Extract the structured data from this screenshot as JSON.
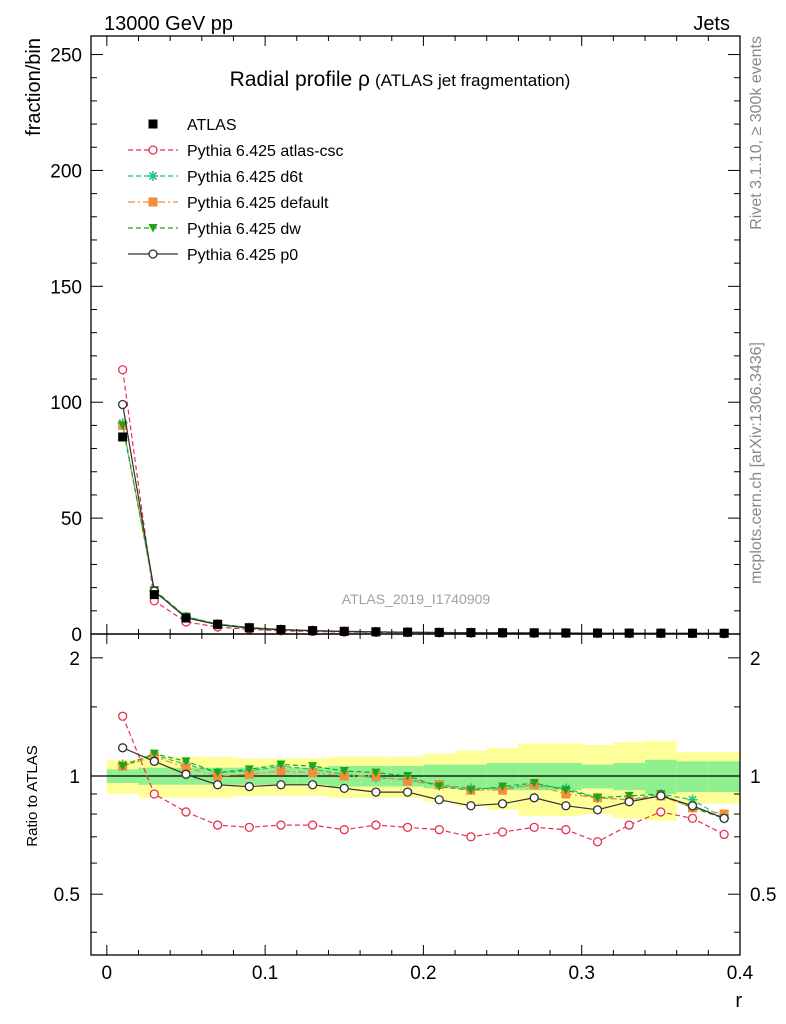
{
  "header": {
    "left": "13000 GeV pp",
    "right": "Jets"
  },
  "side_labels": {
    "top": "Rivet 3.1.10, ≥ 300k events",
    "bottom": "mcplots.cern.ch [arXiv:1306.3436]"
  },
  "watermark": "ATLAS_2019_I1740909",
  "chart_data": [
    {
      "type": "line",
      "panel": "main",
      "title": "Radial profile ρ",
      "subtitle": "(ATLAS jet fragmentation)",
      "xlabel": "",
      "ylabel": "fraction/bin",
      "xlim": [
        -0.01,
        0.4
      ],
      "ylim": [
        0,
        258
      ],
      "x_ticks": [
        0,
        0.1,
        0.2,
        0.3,
        0.4
      ],
      "y_ticks": [
        0,
        50,
        100,
        150,
        200,
        250
      ],
      "legend_position": "top-left",
      "x": [
        0.01,
        0.03,
        0.05,
        0.07,
        0.09,
        0.11,
        0.13,
        0.15,
        0.17,
        0.19,
        0.21,
        0.23,
        0.25,
        0.27,
        0.29,
        0.31,
        0.33,
        0.35,
        0.37,
        0.39
      ],
      "series": [
        {
          "name": "ATLAS",
          "style": "data",
          "color": "#000000",
          "marker": "square",
          "values": [
            85,
            17,
            6.9,
            4.2,
            2.7,
            1.9,
            1.45,
            1.15,
            0.95,
            0.8,
            0.7,
            0.62,
            0.55,
            0.5,
            0.46,
            0.42,
            0.39,
            0.36,
            0.34,
            0.32
          ]
        },
        {
          "name": "Pythia 6.425 atlas-csc",
          "style": "dashed",
          "color": "#e8304e",
          "marker": "circle-open",
          "values": [
            114,
            14.3,
            5.2,
            3.0,
            2.0,
            1.4,
            1.1,
            0.85,
            0.72,
            0.6,
            0.52,
            0.44,
            0.4,
            0.37,
            0.34,
            0.29,
            0.29,
            0.29,
            0.27,
            0.23
          ]
        },
        {
          "name": "Pythia 6.425 d6t",
          "style": "dashed",
          "color": "#1ec08a",
          "marker": "star",
          "values": [
            91,
            18.5,
            7.4,
            4.3,
            2.8,
            2.0,
            1.5,
            1.17,
            0.95,
            0.79,
            0.67,
            0.57,
            0.52,
            0.48,
            0.42,
            0.37,
            0.35,
            0.33,
            0.3,
            0.25
          ]
        },
        {
          "name": "Pythia 6.425 default",
          "style": "dashdot",
          "color": "#f58b3c",
          "marker": "square",
          "values": [
            90,
            18.7,
            7.3,
            4.2,
            2.7,
            1.95,
            1.48,
            1.16,
            0.95,
            0.78,
            0.67,
            0.57,
            0.51,
            0.48,
            0.41,
            0.37,
            0.34,
            0.32,
            0.28,
            0.26
          ]
        },
        {
          "name": "Pythia 6.425 dw",
          "style": "dashed",
          "color": "#1aa81a",
          "marker": "triangle-down",
          "values": [
            90,
            19.0,
            7.5,
            4.3,
            2.8,
            2.0,
            1.52,
            1.18,
            0.97,
            0.8,
            0.66,
            0.57,
            0.52,
            0.48,
            0.42,
            0.37,
            0.35,
            0.32,
            0.28,
            0.25
          ]
        },
        {
          "name": "Pythia 6.425 p0",
          "style": "solid",
          "color": "#303030",
          "marker": "circle-open",
          "values": [
            99,
            18.5,
            7.0,
            4.0,
            2.55,
            1.8,
            1.38,
            1.07,
            0.86,
            0.73,
            0.61,
            0.52,
            0.47,
            0.44,
            0.38,
            0.34,
            0.33,
            0.32,
            0.28,
            0.25
          ]
        }
      ]
    },
    {
      "type": "line",
      "panel": "ratio",
      "xlabel": "r",
      "ylabel": "Ratio to ATLAS",
      "xlim": [
        -0.01,
        0.4
      ],
      "ylim": [
        0.35,
        2.3
      ],
      "y_scale": "log",
      "x_ticks": [
        0,
        0.1,
        0.2,
        0.3,
        0.4
      ],
      "y_ticks": [
        0.5,
        1,
        2
      ],
      "reference": 1,
      "x": [
        0.01,
        0.03,
        0.05,
        0.07,
        0.09,
        0.11,
        0.13,
        0.15,
        0.17,
        0.19,
        0.21,
        0.23,
        0.25,
        0.27,
        0.29,
        0.31,
        0.33,
        0.35,
        0.37,
        0.39
      ],
      "bands": {
        "bin_edges": [
          0.0,
          0.02,
          0.04,
          0.06,
          0.08,
          0.1,
          0.12,
          0.14,
          0.16,
          0.18,
          0.2,
          0.22,
          0.24,
          0.26,
          0.28,
          0.3,
          0.32,
          0.34,
          0.36,
          0.38,
          0.4
        ],
        "stat_color": "#90f090",
        "total_color": "#ffff99",
        "stat": [
          0.04,
          0.05,
          0.05,
          0.05,
          0.05,
          0.05,
          0.05,
          0.06,
          0.06,
          0.06,
          0.07,
          0.07,
          0.08,
          0.08,
          0.08,
          0.07,
          0.08,
          0.1,
          0.09,
          0.09
        ],
        "total": [
          0.1,
          0.12,
          0.12,
          0.12,
          0.11,
          0.11,
          0.11,
          0.12,
          0.12,
          0.12,
          0.14,
          0.16,
          0.18,
          0.21,
          0.21,
          0.2,
          0.22,
          0.23,
          0.15,
          0.15
        ]
      },
      "series": [
        {
          "name": "Pythia 6.425 atlas-csc",
          "style": "dashed",
          "color": "#e8304e",
          "marker": "circle-open",
          "values": [
            1.42,
            0.9,
            0.81,
            0.75,
            0.74,
            0.75,
            0.75,
            0.73,
            0.75,
            0.74,
            0.73,
            0.7,
            0.72,
            0.74,
            0.73,
            0.68,
            0.75,
            0.81,
            0.78,
            0.71
          ]
        },
        {
          "name": "Pythia 6.425 d6t",
          "style": "dashed",
          "color": "#1ec08a",
          "marker": "star",
          "values": [
            1.07,
            1.13,
            1.07,
            1.02,
            1.03,
            1.06,
            1.04,
            1.01,
            0.99,
            0.98,
            0.95,
            0.93,
            0.93,
            0.95,
            0.93,
            0.88,
            0.87,
            0.9,
            0.87,
            0.78
          ]
        },
        {
          "name": "Pythia 6.425 default",
          "style": "dashdot",
          "color": "#f58b3c",
          "marker": "square",
          "values": [
            1.06,
            1.12,
            1.05,
            1.0,
            1.01,
            1.03,
            1.02,
            1.0,
            1.0,
            0.97,
            0.95,
            0.92,
            0.92,
            0.95,
            0.9,
            0.88,
            0.87,
            0.89,
            0.83,
            0.8
          ]
        },
        {
          "name": "Pythia 6.425 dw",
          "style": "dashed",
          "color": "#1aa81a",
          "marker": "triangle-down",
          "values": [
            1.06,
            1.14,
            1.09,
            1.02,
            1.04,
            1.07,
            1.06,
            1.03,
            1.02,
            1.0,
            0.94,
            0.92,
            0.94,
            0.96,
            0.92,
            0.88,
            0.89,
            0.9,
            0.83,
            0.78
          ]
        },
        {
          "name": "Pythia 6.425 p0",
          "style": "solid",
          "color": "#303030",
          "marker": "circle-open",
          "values": [
            1.18,
            1.09,
            1.01,
            0.95,
            0.94,
            0.95,
            0.95,
            0.93,
            0.91,
            0.91,
            0.87,
            0.84,
            0.85,
            0.88,
            0.84,
            0.82,
            0.86,
            0.89,
            0.84,
            0.78
          ]
        }
      ]
    }
  ]
}
